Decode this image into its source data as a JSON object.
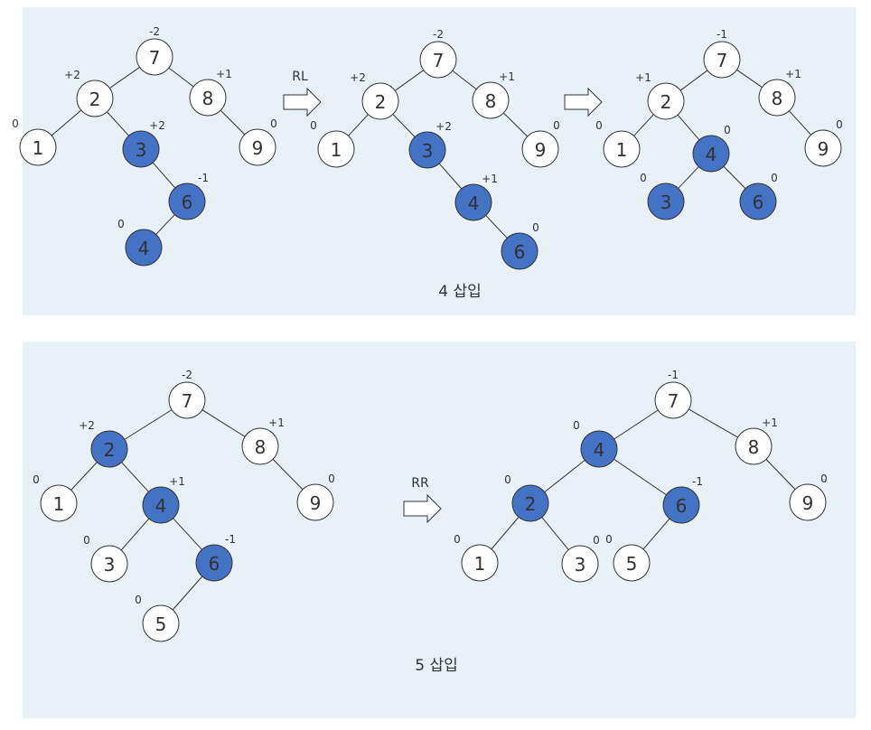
{
  "sections": [
    {
      "caption": "4 삽입",
      "trees": [
        {
          "nodes": [
            {
              "id": "n7",
              "label": "7",
              "bf": "-2",
              "hl": false
            },
            {
              "id": "n2",
              "label": "2",
              "bf": "+2",
              "hl": false
            },
            {
              "id": "n8",
              "label": "8",
              "bf": "+1",
              "hl": false
            },
            {
              "id": "n1",
              "label": "1",
              "bf": "0",
              "hl": false
            },
            {
              "id": "n3",
              "label": "3",
              "bf": "+2",
              "hl": true
            },
            {
              "id": "n9",
              "label": "9",
              "bf": "0",
              "hl": false
            },
            {
              "id": "n6",
              "label": "6",
              "bf": "-1",
              "hl": true
            },
            {
              "id": "n4",
              "label": "4",
              "bf": "0",
              "hl": true
            }
          ]
        },
        {
          "nodes": [
            {
              "id": "n7",
              "label": "7",
              "bf": "-2",
              "hl": false
            },
            {
              "id": "n2",
              "label": "2",
              "bf": "+2",
              "hl": false
            },
            {
              "id": "n8",
              "label": "8",
              "bf": "+1",
              "hl": false
            },
            {
              "id": "n1",
              "label": "1",
              "bf": "0",
              "hl": false
            },
            {
              "id": "n3",
              "label": "3",
              "bf": "+2",
              "hl": true
            },
            {
              "id": "n9",
              "label": "9",
              "bf": "0",
              "hl": false
            },
            {
              "id": "n4",
              "label": "4",
              "bf": "+1",
              "hl": true
            },
            {
              "id": "n6",
              "label": "6",
              "bf": "0",
              "hl": true
            }
          ]
        },
        {
          "nodes": [
            {
              "id": "n7",
              "label": "7",
              "bf": "-1",
              "hl": false
            },
            {
              "id": "n2",
              "label": "2",
              "bf": "+1",
              "hl": false
            },
            {
              "id": "n8",
              "label": "8",
              "bf": "+1",
              "hl": false
            },
            {
              "id": "n1",
              "label": "1",
              "bf": "0",
              "hl": false
            },
            {
              "id": "n4",
              "label": "4",
              "bf": "0",
              "hl": true
            },
            {
              "id": "n9",
              "label": "9",
              "bf": "0",
              "hl": false
            },
            {
              "id": "n3",
              "label": "3",
              "bf": "0",
              "hl": true
            },
            {
              "id": "n6",
              "label": "6",
              "bf": "0",
              "hl": true
            }
          ]
        }
      ],
      "arrows": [
        {
          "label": "RL"
        },
        {
          "label": ""
        }
      ]
    },
    {
      "caption": "5 삽입",
      "trees": [
        {
          "nodes": [
            {
              "id": "n7",
              "label": "7",
              "bf": "-2",
              "hl": false
            },
            {
              "id": "n2",
              "label": "2",
              "bf": "+2",
              "hl": true
            },
            {
              "id": "n8",
              "label": "8",
              "bf": "+1",
              "hl": false
            },
            {
              "id": "n1",
              "label": "1",
              "bf": "0",
              "hl": false
            },
            {
              "id": "n4",
              "label": "4",
              "bf": "+1",
              "hl": true
            },
            {
              "id": "n9",
              "label": "9",
              "bf": "0",
              "hl": false
            },
            {
              "id": "n3",
              "label": "3",
              "bf": "0",
              "hl": false
            },
            {
              "id": "n6",
              "label": "6",
              "bf": "-1",
              "hl": true
            },
            {
              "id": "n5",
              "label": "5",
              "bf": "0",
              "hl": false
            }
          ]
        },
        {
          "nodes": [
            {
              "id": "n7",
              "label": "7",
              "bf": "-1",
              "hl": false
            },
            {
              "id": "n4",
              "label": "4",
              "bf": "0",
              "hl": true
            },
            {
              "id": "n8",
              "label": "8",
              "bf": "+1",
              "hl": false
            },
            {
              "id": "n2",
              "label": "2",
              "bf": "0",
              "hl": true
            },
            {
              "id": "n6",
              "label": "6",
              "bf": "-1",
              "hl": true
            },
            {
              "id": "n9",
              "label": "9",
              "bf": "0",
              "hl": false
            },
            {
              "id": "n1",
              "label": "1",
              "bf": "0",
              "hl": false
            },
            {
              "id": "n3",
              "label": "3",
              "bf": "0",
              "hl": false
            },
            {
              "id": "n5",
              "label": "5",
              "bf": "0",
              "hl": false
            }
          ]
        }
      ],
      "arrows": [
        {
          "label": "RR"
        }
      ]
    }
  ]
}
